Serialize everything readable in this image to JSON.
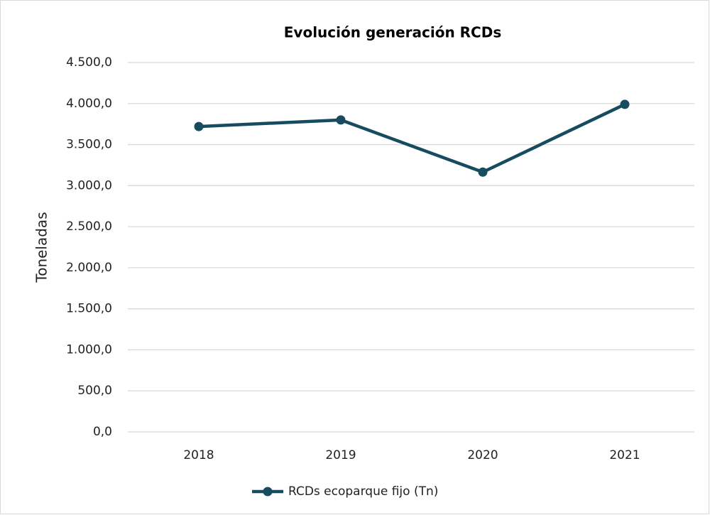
{
  "chart_data": {
    "type": "line",
    "title": "Evolución generación RCDs",
    "y_label": "Toneladas",
    "categories": [
      "2018",
      "2019",
      "2020",
      "2021"
    ],
    "series": [
      {
        "name": "RCDs ecoparque fijo (Tn)",
        "color": "#174b5f",
        "values": [
          3720,
          3800,
          3165,
          3990
        ]
      }
    ],
    "ylim": [
      0,
      4500
    ],
    "yticks": [
      {
        "value": 0,
        "label": "0,0"
      },
      {
        "value": 500,
        "label": "500,0"
      },
      {
        "value": 1000,
        "label": "1.000,0"
      },
      {
        "value": 1500,
        "label": "1.500,0"
      },
      {
        "value": 2000,
        "label": "2.000,0"
      },
      {
        "value": 2500,
        "label": "2.500,0"
      },
      {
        "value": 3000,
        "label": "3.000,0"
      },
      {
        "value": 3500,
        "label": "3.500,0"
      },
      {
        "value": 4000,
        "label": "4.000,0"
      },
      {
        "value": 4500,
        "label": "4.500,0"
      }
    ],
    "grid": true,
    "legend": "bottom"
  }
}
